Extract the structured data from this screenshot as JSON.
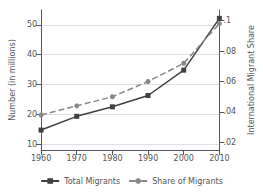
{
  "chart_data": {
    "type": "line",
    "x": [
      1960,
      1970,
      1980,
      1990,
      2000,
      2010
    ],
    "xlim": [
      1960,
      2010
    ],
    "xticks": [
      1960,
      1970,
      1980,
      1990,
      2000,
      2010
    ],
    "ylim": [
      8,
      55
    ],
    "yticks": [
      10,
      20,
      30,
      40,
      50
    ],
    "y2lim": [
      0.015,
      0.107
    ],
    "y2ticks": [
      {
        "value": 0.02,
        "label": ".02"
      },
      {
        "value": 0.04,
        "label": ".04"
      },
      {
        "value": 0.06,
        "label": ".06"
      },
      {
        "value": 0.08,
        "label": ".08"
      },
      {
        "value": 0.1,
        "label": ".1"
      }
    ],
    "ylabel": "Number (in millions)",
    "y2label": "International Migrant Share",
    "grid": true,
    "legend": "bottom",
    "series": [
      {
        "name": "Total Migrants",
        "color": "#404040",
        "marker": "square",
        "line_style": "solid",
        "values": [
          14.7,
          19.3,
          22.5,
          26.3,
          34.8,
          52.2
        ]
      },
      {
        "name": "Share of Migrants",
        "axis": "y2",
        "color": "#888888",
        "marker": "circle",
        "line_style": "dashed",
        "values": [
          0.038,
          0.044,
          0.05,
          0.06,
          0.072,
          0.098
        ]
      }
    ]
  }
}
